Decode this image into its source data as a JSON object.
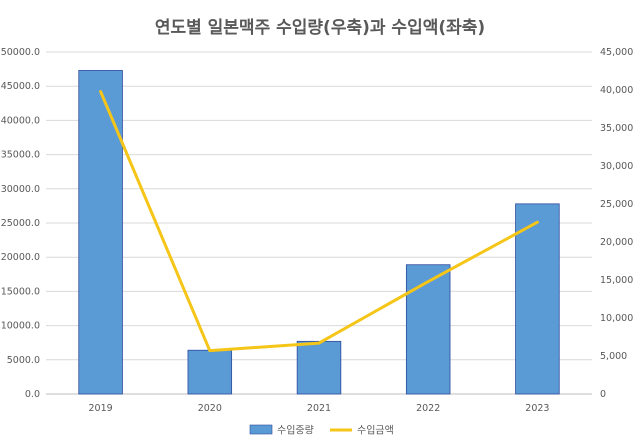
{
  "chart_data": {
    "type": "bar+line",
    "title": "연도별 일본맥주 수입량(우축)과 수입액(좌축)",
    "categories": [
      "2019",
      "2020",
      "2021",
      "2022",
      "2023"
    ],
    "series": [
      {
        "name": "수입중량",
        "type": "bar",
        "axis": "left",
        "color": "#5b9bd5",
        "values": [
          47300,
          6400,
          7700,
          18900,
          27800
        ]
      },
      {
        "name": "수입금액",
        "type": "line",
        "axis": "right",
        "color": "#f5c518",
        "values": [
          39800,
          5700,
          6700,
          14800,
          22600
        ]
      }
    ],
    "left_axis": {
      "ylim": [
        0,
        50000
      ],
      "ticks": [
        "0.0",
        "5000.0",
        "10000.0",
        "15000.0",
        "20000.0",
        "25000.0",
        "30000.0",
        "35000.0",
        "40000.0",
        "45000.0",
        "50000.0"
      ]
    },
    "right_axis": {
      "ylim": [
        0,
        45000
      ],
      "ticks": [
        "0",
        "5,000",
        "10,000",
        "15,000",
        "20,000",
        "25,000",
        "30,000",
        "35,000",
        "40,000",
        "45,000"
      ]
    },
    "grid": true,
    "legend_position": "bottom"
  }
}
